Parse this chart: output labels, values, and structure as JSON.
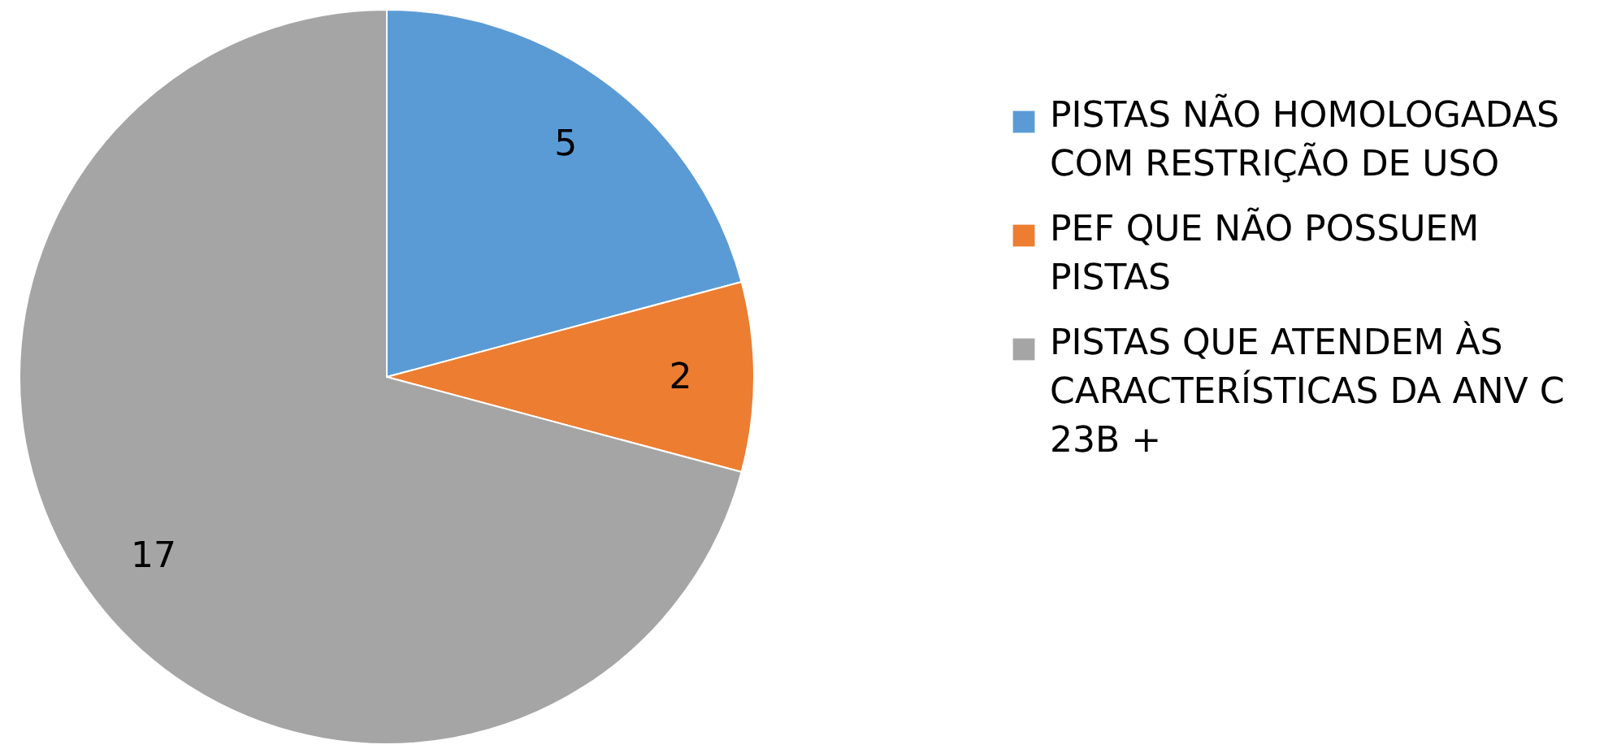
{
  "chart_data": {
    "type": "pie",
    "categories": [
      "PISTAS NÃO HOMOLOGADAS COM RESTRIÇÃO DE USO",
      "PEF QUE NÃO POSSUEM PISTAS",
      "PISTAS QUE ATENDEM ÀS CARACTERÍSTICAS DA ANV C 23B +"
    ],
    "values": [
      5,
      2,
      17
    ],
    "colors": [
      "#5b9bd5",
      "#ed7d31",
      "#a5a5a5"
    ],
    "data_labels": true,
    "legend": "right"
  }
}
